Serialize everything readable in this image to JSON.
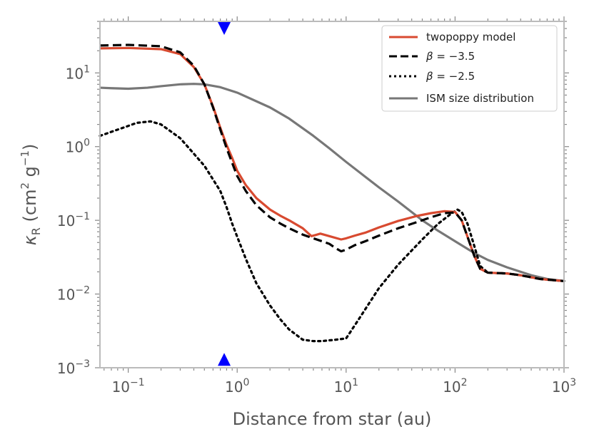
{
  "chart_data": {
    "type": "line",
    "xscale": "log",
    "yscale": "log",
    "xlim": [
      0.055,
      1000
    ],
    "ylim": [
      0.001,
      50
    ],
    "xlabel": "Distance from star (au)",
    "ylabel": "κR (cm² g⁻¹)",
    "ylabel_parts": {
      "kappa": "κ",
      "sub": "R",
      "open": " (cm",
      "sup2": "2",
      "g": " g",
      "supm1": "−1",
      "close": ")"
    },
    "x_ticks": [
      {
        "value": 0.1,
        "base": "10",
        "exp": "−1"
      },
      {
        "value": 1,
        "base": "10",
        "exp": "0"
      },
      {
        "value": 10,
        "base": "10",
        "exp": "1"
      },
      {
        "value": 100,
        "base": "10",
        "exp": "2"
      },
      {
        "value": 1000,
        "base": "10",
        "exp": "3"
      }
    ],
    "y_ticks": [
      {
        "value": 0.001,
        "base": "10",
        "exp": "−3"
      },
      {
        "value": 0.01,
        "base": "10",
        "exp": "−2"
      },
      {
        "value": 0.1,
        "base": "10",
        "exp": "−1"
      },
      {
        "value": 1,
        "base": "10",
        "exp": "0"
      },
      {
        "value": 10,
        "base": "10",
        "exp": "1"
      }
    ],
    "markers": [
      {
        "name": "marker-top",
        "x": 0.76,
        "y": 40,
        "shape": "triangle-down",
        "color": "#0000ff"
      },
      {
        "name": "marker-bottom",
        "x": 0.76,
        "y": 0.0013,
        "shape": "triangle-up",
        "color": "#0000ff"
      }
    ],
    "legend": {
      "position": "top-right"
    },
    "series": [
      {
        "name": "twopoppy model",
        "color": "#d84a30",
        "dash": "solid",
        "points": [
          [
            0.055,
            21.5
          ],
          [
            0.1,
            21.8
          ],
          [
            0.2,
            21.0
          ],
          [
            0.3,
            18.0
          ],
          [
            0.4,
            12.0
          ],
          [
            0.5,
            7.0
          ],
          [
            0.6,
            3.5
          ],
          [
            0.7,
            1.8
          ],
          [
            0.8,
            1.05
          ],
          [
            0.9,
            0.7
          ],
          [
            1.0,
            0.47
          ],
          [
            1.2,
            0.3
          ],
          [
            1.5,
            0.2
          ],
          [
            2,
            0.14
          ],
          [
            2.5,
            0.115
          ],
          [
            3,
            0.1
          ],
          [
            4,
            0.078
          ],
          [
            4.8,
            0.061
          ],
          [
            5.2,
            0.063
          ],
          [
            5.8,
            0.066
          ],
          [
            7,
            0.061
          ],
          [
            9,
            0.055
          ],
          [
            10,
            0.057
          ],
          [
            12,
            0.062
          ],
          [
            15,
            0.068
          ],
          [
            20,
            0.08
          ],
          [
            30,
            0.098
          ],
          [
            45,
            0.115
          ],
          [
            60,
            0.125
          ],
          [
            80,
            0.133
          ],
          [
            100,
            0.13
          ],
          [
            115,
            0.1
          ],
          [
            130,
            0.06
          ],
          [
            150,
            0.033
          ],
          [
            170,
            0.022
          ],
          [
            200,
            0.0195
          ],
          [
            300,
            0.019
          ],
          [
            400,
            0.018
          ],
          [
            600,
            0.016
          ],
          [
            1000,
            0.015
          ]
        ]
      },
      {
        "name": "β = −3.5",
        "label_beta": "β",
        "label_value": " = −3.5",
        "color": "#000000",
        "dash": "dashed",
        "points": [
          [
            0.055,
            23.5
          ],
          [
            0.1,
            24.0
          ],
          [
            0.2,
            23.0
          ],
          [
            0.3,
            19.0
          ],
          [
            0.4,
            12.5
          ],
          [
            0.5,
            7.0
          ],
          [
            0.6,
            3.4
          ],
          [
            0.7,
            1.7
          ],
          [
            0.8,
            0.95
          ],
          [
            0.9,
            0.6
          ],
          [
            1.0,
            0.4
          ],
          [
            1.2,
            0.25
          ],
          [
            1.5,
            0.16
          ],
          [
            2,
            0.11
          ],
          [
            2.5,
            0.09
          ],
          [
            3,
            0.078
          ],
          [
            4,
            0.064
          ],
          [
            5,
            0.057
          ],
          [
            6,
            0.052
          ],
          [
            7,
            0.048
          ],
          [
            8,
            0.042
          ],
          [
            9,
            0.038
          ],
          [
            10,
            0.04
          ],
          [
            12,
            0.046
          ],
          [
            15,
            0.052
          ],
          [
            20,
            0.062
          ],
          [
            30,
            0.078
          ],
          [
            45,
            0.095
          ],
          [
            60,
            0.11
          ],
          [
            80,
            0.125
          ],
          [
            100,
            0.128
          ],
          [
            115,
            0.1
          ],
          [
            130,
            0.06
          ],
          [
            150,
            0.033
          ],
          [
            170,
            0.022
          ],
          [
            200,
            0.0195
          ],
          [
            300,
            0.019
          ],
          [
            400,
            0.018
          ],
          [
            600,
            0.016
          ],
          [
            1000,
            0.015
          ]
        ]
      },
      {
        "name": "β = −2.5",
        "label_beta": "β",
        "label_value": " = −2.5",
        "color": "#000000",
        "dash": "dotted",
        "points": [
          [
            0.055,
            1.4
          ],
          [
            0.08,
            1.7
          ],
          [
            0.12,
            2.1
          ],
          [
            0.16,
            2.2
          ],
          [
            0.2,
            2.0
          ],
          [
            0.3,
            1.3
          ],
          [
            0.5,
            0.55
          ],
          [
            0.7,
            0.25
          ],
          [
            0.8,
            0.15
          ],
          [
            0.9,
            0.09
          ],
          [
            1.0,
            0.06
          ],
          [
            1.2,
            0.03
          ],
          [
            1.5,
            0.014
          ],
          [
            2,
            0.007
          ],
          [
            2.5,
            0.0045
          ],
          [
            3,
            0.0033
          ],
          [
            4,
            0.0024
          ],
          [
            5,
            0.0023
          ],
          [
            6,
            0.0023
          ],
          [
            8,
            0.0024
          ],
          [
            10,
            0.0025
          ],
          [
            13,
            0.0045
          ],
          [
            20,
            0.012
          ],
          [
            30,
            0.025
          ],
          [
            50,
            0.055
          ],
          [
            70,
            0.09
          ],
          [
            90,
            0.12
          ],
          [
            105,
            0.14
          ],
          [
            115,
            0.13
          ],
          [
            130,
            0.09
          ],
          [
            150,
            0.045
          ],
          [
            170,
            0.024
          ],
          [
            200,
            0.0195
          ],
          [
            300,
            0.019
          ],
          [
            400,
            0.018
          ],
          [
            600,
            0.016
          ],
          [
            1000,
            0.015
          ]
        ]
      },
      {
        "name": "ISM size distribution",
        "color": "#777777",
        "dash": "solid",
        "points": [
          [
            0.055,
            6.3
          ],
          [
            0.07,
            6.2
          ],
          [
            0.1,
            6.1
          ],
          [
            0.15,
            6.3
          ],
          [
            0.2,
            6.6
          ],
          [
            0.3,
            7.0
          ],
          [
            0.4,
            7.1
          ],
          [
            0.5,
            7.0
          ],
          [
            0.7,
            6.4
          ],
          [
            1,
            5.4
          ],
          [
            2,
            3.4
          ],
          [
            3,
            2.4
          ],
          [
            5,
            1.4
          ],
          [
            7,
            0.95
          ],
          [
            10,
            0.62
          ],
          [
            20,
            0.28
          ],
          [
            30,
            0.18
          ],
          [
            50,
            0.1
          ],
          [
            70,
            0.072
          ],
          [
            100,
            0.052
          ],
          [
            150,
            0.036
          ],
          [
            200,
            0.029
          ],
          [
            300,
            0.023
          ],
          [
            500,
            0.018
          ],
          [
            700,
            0.016
          ],
          [
            1000,
            0.015
          ]
        ]
      }
    ]
  }
}
